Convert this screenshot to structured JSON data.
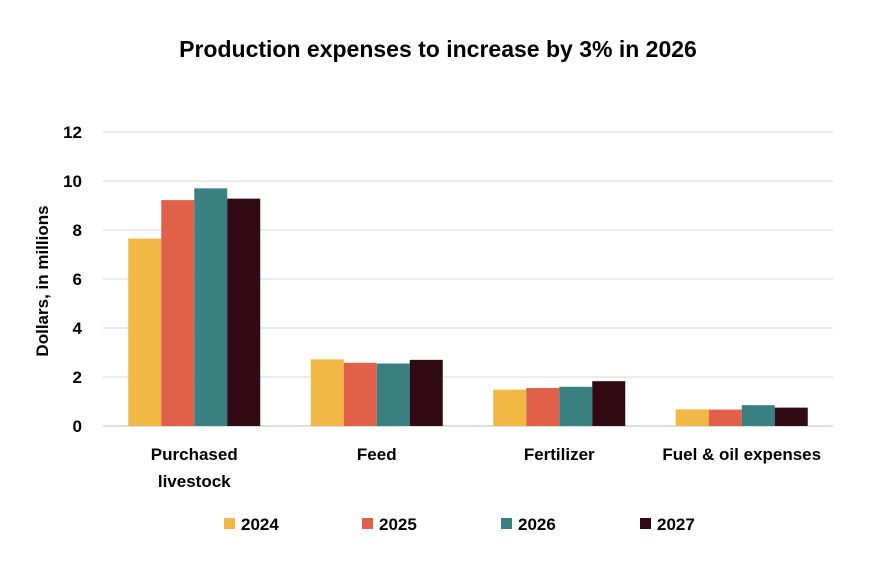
{
  "chart_data": {
    "type": "bar",
    "title": "Production expenses to increase by 3% in 2026",
    "ylabel": "Dollars, in millions",
    "xlabel": "",
    "ylim": [
      0,
      12
    ],
    "yticks": [
      0,
      2,
      4,
      6,
      8,
      10,
      12
    ],
    "grid": true,
    "legend_position": "bottom",
    "categories": [
      [
        "Purchased",
        "livestock"
      ],
      [
        "Feed"
      ],
      [
        "Fertilizer"
      ],
      [
        "Fuel & oil expenses"
      ]
    ],
    "series": [
      {
        "name": "2024",
        "color": "#F2B845",
        "values": [
          7.65,
          2.72,
          1.48,
          0.68
        ]
      },
      {
        "name": "2025",
        "color": "#E0604A",
        "values": [
          9.22,
          2.58,
          1.55,
          0.67
        ]
      },
      {
        "name": "2026",
        "color": "#3A8081",
        "values": [
          9.7,
          2.55,
          1.6,
          0.85
        ]
      },
      {
        "name": "2027",
        "color": "#320A16",
        "values": [
          9.28,
          2.7,
          1.83,
          0.75
        ]
      }
    ]
  }
}
